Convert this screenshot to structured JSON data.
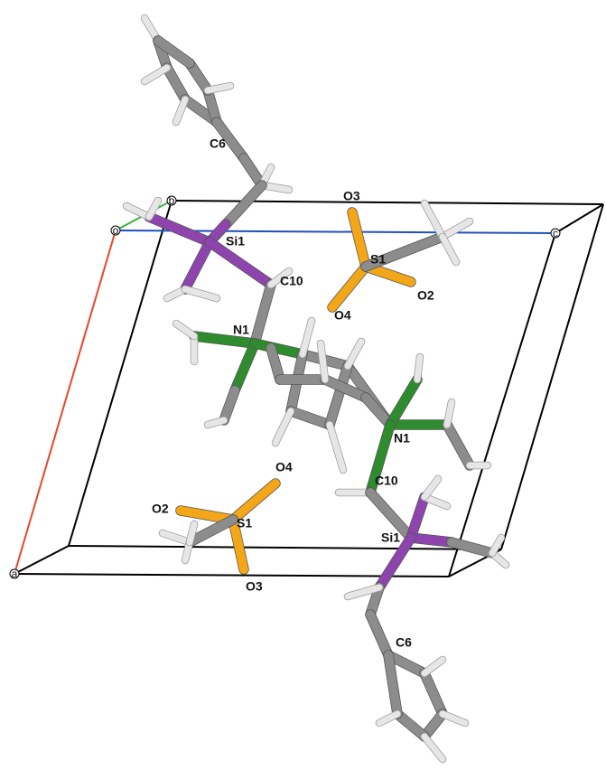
{
  "axes": {
    "origin": "o",
    "a": "a",
    "b": "b",
    "c": "c"
  },
  "atom_labels": [
    "C6",
    "Si1",
    "C10",
    "N1",
    "O3",
    "S1",
    "O2",
    "O4",
    "N1",
    "C10",
    "Si1",
    "C6",
    "O4",
    "O2",
    "S1",
    "O3"
  ]
}
